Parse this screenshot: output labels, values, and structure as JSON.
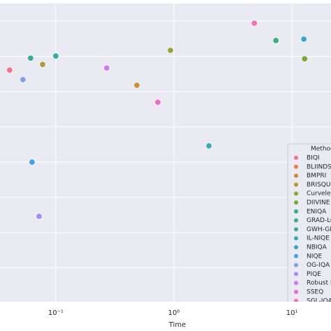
{
  "chart_data": {
    "type": "scatter",
    "x_label": "Time",
    "log_x": true,
    "grid": true,
    "legend_position": "lower right",
    "legend_title": "Method",
    "xlim": [
      0.0337,
      21.4
    ],
    "xticks": [
      {
        "value": 0.1,
        "label": "10⁻¹"
      },
      {
        "value": 1,
        "label": "10⁰"
      },
      {
        "value": 10,
        "label": "10¹"
      }
    ],
    "ylim": [
      0.04,
      8.5
    ],
    "yticks": [
      1,
      2,
      3,
      4,
      5,
      6,
      7,
      8
    ],
    "series": [
      {
        "name": "BIQI",
        "color": "#f77189",
        "x": [
          0.0407
        ],
        "y": [
          6.61
        ]
      },
      {
        "name": "BLIINDS-II",
        "color": "#f7754f",
        "x": [],
        "y": []
      },
      {
        "name": "BMPRI",
        "color": "#ce8f31",
        "x": [
          0.486
        ],
        "y": [
          6.18
        ]
      },
      {
        "name": "BRISQUE",
        "color": "#ae9d31",
        "x": [
          0.0773
        ],
        "y": [
          6.77
        ]
      },
      {
        "name": "Curvelet",
        "color": "#97a431",
        "x": [
          0.935
        ],
        "y": [
          7.17
        ]
      },
      {
        "name": "DIIVINE",
        "color": "#77ab31",
        "x": [
          12.8
        ],
        "y": [
          6.93
        ]
      },
      {
        "name": "ENIQA",
        "color": "#33b07a",
        "x": [
          7.31
        ],
        "y": [
          7.45
        ]
      },
      {
        "name": "GRAD-LOG",
        "color": "#35ae93",
        "x": [
          0.0612
        ],
        "y": [
          6.95
        ]
      },
      {
        "name": "GWH-GLBP",
        "color": "#36ada4",
        "x": [
          0.1
        ],
        "y": [
          7.01
        ]
      },
      {
        "name": "IL-NIQE",
        "color": "#37abb4",
        "x": [
          1.98
        ],
        "y": [
          4.46
        ]
      },
      {
        "name": "NBIQA",
        "color": "#38a9c5",
        "x": [
          12.6
        ],
        "y": [
          7.49
        ]
      },
      {
        "name": "NIQE",
        "color": "#3ba3ec",
        "x": [
          0.0629
        ],
        "y": [
          4.0
        ]
      },
      {
        "name": "OG-IQA",
        "color": "#809fea",
        "x": [
          0.0527
        ],
        "y": [
          6.34
        ]
      },
      {
        "name": "PIQE",
        "color": "#a48cf4",
        "x": [
          0.0722
        ],
        "y": [
          2.46
        ]
      },
      {
        "name": "Robust BRISQUE",
        "color": "#cc7af4",
        "x": [
          0.27
        ],
        "y": [
          6.67
        ]
      },
      {
        "name": "SSEQ",
        "color": "#f565cc",
        "x": [
          0.731
        ],
        "y": [
          5.7
        ]
      },
      {
        "name": "SGL-IQA",
        "color": "#f66db8",
        "x": [
          4.8
        ],
        "y": [
          7.94
        ]
      }
    ]
  }
}
